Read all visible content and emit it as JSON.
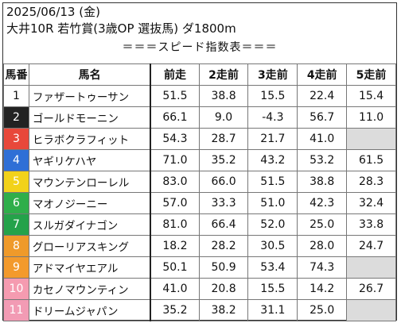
{
  "header": {
    "date_line": "2025/06/13 (金)",
    "race_line": "大井10R 若竹賞(3歳OP 選抜馬) ダ1800m",
    "section_title": "＝＝＝スピード指数表＝＝＝"
  },
  "table": {
    "columns": [
      "馬番",
      "馬名",
      "前走",
      "2走前",
      "3走前",
      "4走前",
      "5走前"
    ],
    "rows": [
      {
        "num": "1",
        "name": "ファザートゥーサン",
        "v": [
          "51.5",
          "38.8",
          "15.5",
          "22.4",
          "15.4"
        ],
        "bg": "#ffffff",
        "fg": "#111111"
      },
      {
        "num": "2",
        "name": "ゴールドモーニン",
        "v": [
          "66.1",
          "9.0",
          "-4.3",
          "56.7",
          "11.0"
        ],
        "bg": "#222222",
        "fg": "#ffffff"
      },
      {
        "num": "3",
        "name": "ヒラボクラフィット",
        "v": [
          "54.3",
          "28.7",
          "21.7",
          "41.0",
          ""
        ],
        "bg": "#e8483a",
        "fg": "#ffffff"
      },
      {
        "num": "4",
        "name": "ヤギリケハヤ",
        "v": [
          "71.0",
          "35.2",
          "43.2",
          "53.2",
          "61.5"
        ],
        "bg": "#2f6fd6",
        "fg": "#ffffff"
      },
      {
        "num": "5",
        "name": "マウンテンローレル",
        "v": [
          "83.0",
          "66.0",
          "51.5",
          "38.8",
          "28.3"
        ],
        "bg": "#f2d21a",
        "fg": "#ffffff"
      },
      {
        "num": "6",
        "name": "マオノジーニー",
        "v": [
          "57.0",
          "33.3",
          "51.0",
          "42.3",
          "32.4"
        ],
        "bg": "#2fae4a",
        "fg": "#ffffff"
      },
      {
        "num": "7",
        "name": "スルガダイナゴン",
        "v": [
          "81.0",
          "66.4",
          "52.0",
          "25.0",
          "33.8"
        ],
        "bg": "#24a24a",
        "fg": "#ffffff"
      },
      {
        "num": "8",
        "name": "グローリアスキング",
        "v": [
          "18.2",
          "28.2",
          "30.5",
          "28.0",
          "24.7"
        ],
        "bg": "#ef9a2a",
        "fg": "#ffffff"
      },
      {
        "num": "9",
        "name": "アドマイヤエアル",
        "v": [
          "50.1",
          "50.9",
          "53.4",
          "74.3",
          ""
        ],
        "bg": "#f39a2c",
        "fg": "#ffffff"
      },
      {
        "num": "10",
        "name": "カセノマウンティン",
        "v": [
          "41.0",
          "20.8",
          "15.5",
          "14.2",
          "26.7"
        ],
        "bg": "#f59bb0",
        "fg": "#ffffff"
      },
      {
        "num": "11",
        "name": "ドリームジャパン",
        "v": [
          "35.2",
          "38.2",
          "31.1",
          "25.0",
          ""
        ],
        "bg": "#f29bb4",
        "fg": "#ffffff"
      }
    ]
  }
}
